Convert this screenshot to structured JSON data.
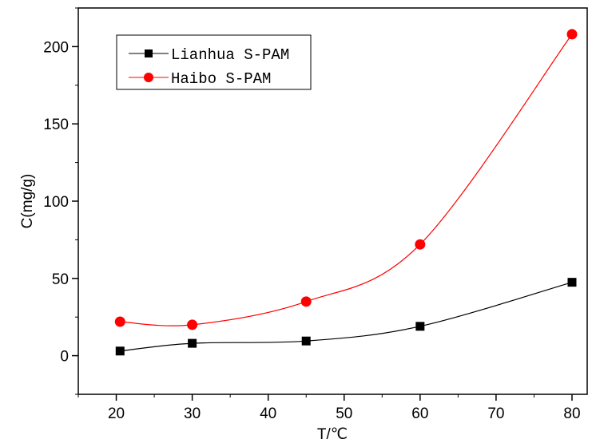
{
  "chart_data": {
    "type": "line",
    "xlabel": "T/℃",
    "ylabel": "C(mg/g)",
    "xlim": [
      15,
      82
    ],
    "ylim": [
      -25,
      225
    ],
    "xticks": [
      20,
      30,
      40,
      50,
      60,
      70,
      80
    ],
    "yticks": [
      0,
      50,
      100,
      150,
      200
    ],
    "grid": false,
    "legend_position": "top-left",
    "series": [
      {
        "name": "Lianhua S-PAM",
        "color": "#000000",
        "marker": "square",
        "x": [
          20.5,
          30,
          45,
          60,
          80
        ],
        "y": [
          3,
          8,
          9.5,
          19,
          47.5
        ]
      },
      {
        "name": "Haibo S-PAM",
        "color": "#ff0000",
        "marker": "circle",
        "x": [
          20.5,
          30,
          45,
          60,
          80
        ],
        "y": [
          22,
          20,
          35,
          72,
          208
        ]
      }
    ]
  }
}
